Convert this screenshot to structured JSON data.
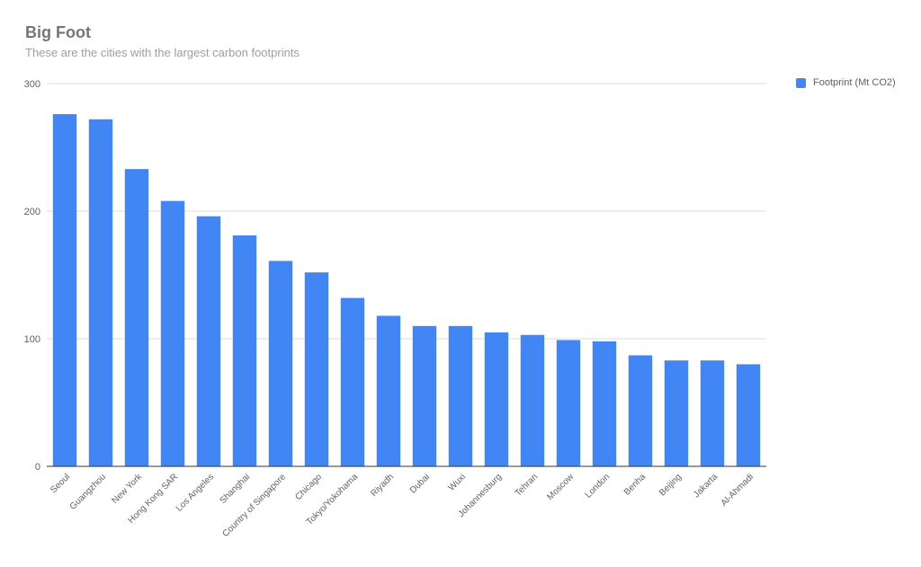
{
  "chart_data": {
    "type": "bar",
    "title": "Big Foot",
    "subtitle": "These are the cities with the largest carbon footprints",
    "xlabel": "",
    "ylabel": "",
    "ylim": [
      0,
      300
    ],
    "yticks": [
      0,
      100,
      200,
      300
    ],
    "grid": true,
    "legend_position": "right",
    "color": "#4285f4",
    "categories": [
      "Seoul",
      "Guangzhou",
      "New York",
      "Hong Kong SAR",
      "Los Angeles",
      "Shanghai",
      "Country of Singapore",
      "Chicago",
      "Tokyo/Yokohama",
      "Riyadh",
      "Dubai",
      "Wuxi",
      "Johannesburg",
      "Tehran",
      "Moscow",
      "London",
      "Benha",
      "Beijing",
      "Jakarta",
      "Al-Ahmadi"
    ],
    "series": [
      {
        "name": "Footprint (Mt CO2)",
        "values": [
          276,
          272,
          233,
          208,
          196,
          181,
          161,
          152,
          132,
          118,
          110,
          110,
          105,
          103,
          99,
          98,
          87,
          83,
          83,
          80
        ]
      }
    ]
  }
}
